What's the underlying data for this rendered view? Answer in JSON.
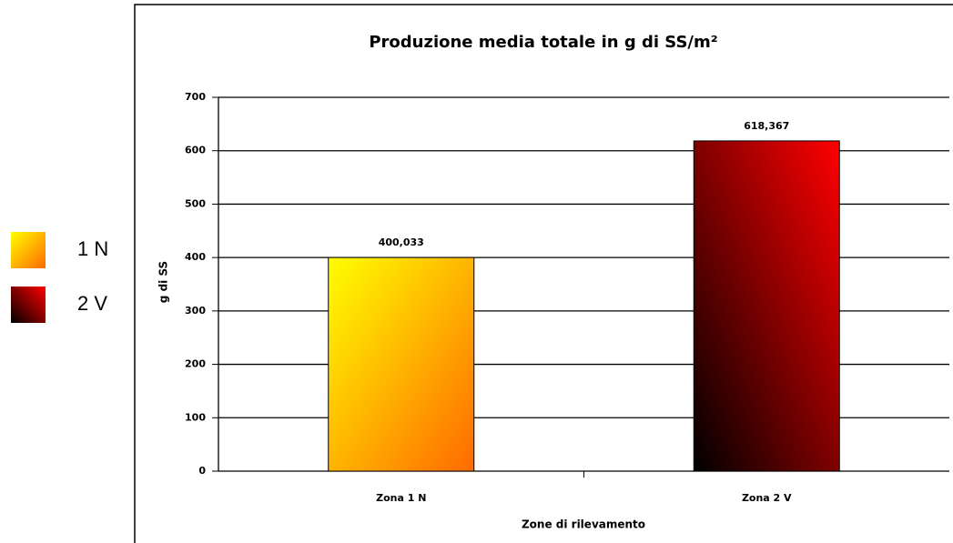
{
  "chart_data": {
    "type": "bar",
    "title": "Produzione media totale in g di SS/m²",
    "categories": [
      "Zona 1 N",
      "Zona 2 V"
    ],
    "series": [
      {
        "name": "1 N",
        "color": "#ff6a00",
        "values": [
          400.033,
          null
        ],
        "value_labels": [
          "400,033",
          null
        ]
      },
      {
        "name": "2 V",
        "color": "#ff0000",
        "values": [
          null,
          618.367
        ],
        "value_labels": [
          null,
          "618,367"
        ]
      }
    ],
    "xlabel": "Zone di rilevamento",
    "ylabel": "g di SS",
    "ylim": [
      0,
      700
    ],
    "yticks": [
      0,
      100,
      200,
      300,
      400,
      500,
      600,
      700
    ],
    "grid": true,
    "legend": "left"
  }
}
